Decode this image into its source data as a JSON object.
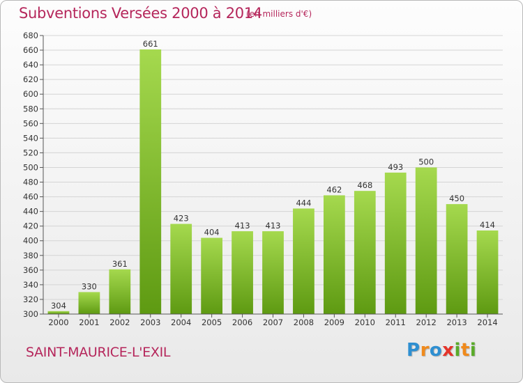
{
  "header": {
    "title": "Subventions Versées 2000 à 2014",
    "unit": "(en milliers d'€)"
  },
  "footer": {
    "city": "SAINT-MAURICE-L'EXIL",
    "logo": [
      "P",
      "r",
      "o",
      "x",
      "i",
      "t",
      "i"
    ]
  },
  "colors": {
    "title": "#b5265b",
    "bar_top": "#a5d94e",
    "bar_bottom": "#5e9a12",
    "grid": "#d4d4d4",
    "logo": [
      "#2e8fd1",
      "#f08a1c",
      "#2e8fd1",
      "#e5342a",
      "#5aab2a",
      "#f08a1c",
      "#5aab2a"
    ]
  },
  "chart_data": {
    "type": "bar",
    "title": "Subventions Versées 2000 à 2014",
    "subtitle": "(en milliers d'€)",
    "categories": [
      "2000",
      "2001",
      "2002",
      "2003",
      "2004",
      "2005",
      "2006",
      "2007",
      "2008",
      "2009",
      "2010",
      "2011",
      "2012",
      "2013",
      "2014"
    ],
    "values": [
      304,
      330,
      361,
      661,
      423,
      404,
      413,
      413,
      444,
      462,
      468,
      493,
      500,
      450,
      414
    ],
    "ylim": [
      300,
      680
    ],
    "yticks": [
      "300",
      "320",
      "340",
      "360",
      "380",
      "400",
      "420",
      "440",
      "460",
      "480",
      "500",
      "520",
      "540",
      "560",
      "580",
      "600",
      "620",
      "640",
      "660",
      "680"
    ],
    "grid": true,
    "xlabel": "",
    "ylabel": ""
  }
}
